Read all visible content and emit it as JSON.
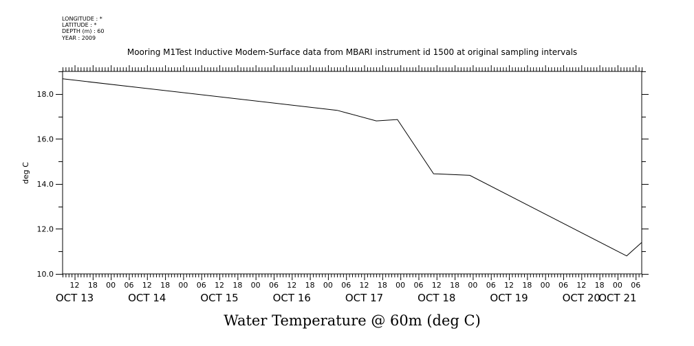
{
  "metadata": {
    "lines": [
      "LONGITUDE : *",
      "LATITUDE : *",
      "DEPTH (m) : 60",
      "YEAR : 2009"
    ]
  },
  "chart_data": {
    "type": "line",
    "title": "Mooring M1Test Inductive Modem-Surface data from MBARI instrument id 1500 at original sampling intervals",
    "xlabel": "Water Temperature @ 60m (deg C)",
    "ylabel": "deg C",
    "xlim_hours": [
      8,
      200
    ],
    "ylim": [
      10.0,
      19.0
    ],
    "yticks_major": [
      10.0,
      12.0,
      14.0,
      16.0,
      18.0
    ],
    "yticks_major_labels": [
      "10.0",
      "12.0",
      "14.0",
      "16.0",
      "18.0"
    ],
    "xtick_hour_labels": [
      "12",
      "18",
      "00",
      "06",
      "12",
      "18",
      "00",
      "06",
      "12",
      "18",
      "00",
      "06",
      "12",
      "18",
      "00",
      "06",
      "12",
      "18",
      "00",
      "06",
      "12",
      "18",
      "00",
      "06",
      "12",
      "18",
      "00",
      "06",
      "12",
      "18",
      "00",
      "06"
    ],
    "xtick_hours": [
      12,
      18,
      24,
      30,
      36,
      42,
      48,
      54,
      60,
      66,
      72,
      78,
      84,
      90,
      96,
      102,
      108,
      114,
      120,
      126,
      132,
      138,
      144,
      150,
      156,
      162,
      168,
      174,
      180,
      186,
      192,
      198
    ],
    "date_labels": [
      "OCT 13",
      "OCT 14",
      "OCT 15",
      "OCT 16",
      "OCT 17",
      "OCT 18",
      "OCT 19",
      "OCT 20",
      "OCT 21"
    ],
    "date_label_hours": [
      12,
      36,
      60,
      84,
      108,
      132,
      156,
      180,
      192
    ],
    "series": [
      {
        "x": [
          8,
          99,
          112,
          119,
          131,
          143,
          195,
          200
        ],
        "y": [
          18.67,
          17.27,
          16.8,
          16.86,
          14.45,
          14.38,
          10.8,
          11.4
        ]
      }
    ],
    "grid": false
  }
}
